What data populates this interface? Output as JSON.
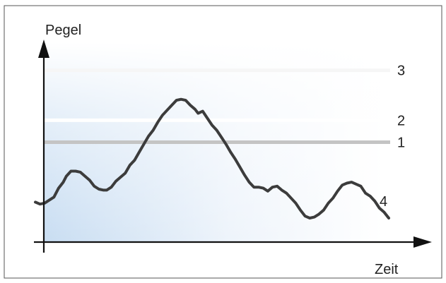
{
  "diagram": {
    "y_axis_label": "Pegel",
    "x_axis_label": "Zeit",
    "levels": [
      {
        "label": "3",
        "value": 86,
        "color": "#f6f6f6"
      },
      {
        "label": "2",
        "value": 61,
        "color": "#ffffff"
      },
      {
        "label": "1",
        "value": 50,
        "color": "#c4c4c4"
      }
    ],
    "curve": {
      "label": "4",
      "color": "#3c3c3c",
      "points": [
        [
          0,
          20
        ],
        [
          1.5,
          19
        ],
        [
          3,
          19.5
        ],
        [
          4.5,
          21
        ],
        [
          6,
          22.5
        ],
        [
          7.5,
          27
        ],
        [
          9,
          30
        ],
        [
          10,
          33
        ],
        [
          11.5,
          35.5
        ],
        [
          13,
          35.5
        ],
        [
          14.5,
          35
        ],
        [
          16,
          33
        ],
        [
          17.5,
          31
        ],
        [
          19,
          28
        ],
        [
          20.5,
          26.5
        ],
        [
          22,
          26
        ],
        [
          23,
          26
        ],
        [
          24.5,
          27.5
        ],
        [
          26,
          30.5
        ],
        [
          27.5,
          32.5
        ],
        [
          29,
          34.5
        ],
        [
          30.5,
          38.5
        ],
        [
          32,
          41
        ],
        [
          33.5,
          45
        ],
        [
          35,
          49
        ],
        [
          36.5,
          53
        ],
        [
          38,
          56
        ],
        [
          39.5,
          60
        ],
        [
          41,
          63.5
        ],
        [
          42.5,
          66
        ],
        [
          44,
          68.5
        ],
        [
          45.5,
          71
        ],
        [
          47,
          71.5
        ],
        [
          48.5,
          71
        ],
        [
          50,
          68.5
        ],
        [
          51.5,
          66.5
        ],
        [
          52.5,
          64.5
        ],
        [
          54,
          65.5
        ],
        [
          55.5,
          62
        ],
        [
          57,
          58.5
        ],
        [
          58.5,
          56
        ],
        [
          60,
          52.5
        ],
        [
          61.5,
          49
        ],
        [
          63,
          45
        ],
        [
          64.5,
          41.5
        ],
        [
          66,
          37.5
        ],
        [
          67.5,
          33.5
        ],
        [
          69,
          30
        ],
        [
          70.5,
          27.5
        ],
        [
          72,
          27.5
        ],
        [
          73.5,
          27
        ],
        [
          75,
          25.5
        ],
        [
          76.5,
          27.5
        ],
        [
          78,
          28
        ],
        [
          79.5,
          26
        ],
        [
          81,
          24.5
        ],
        [
          82.5,
          22
        ],
        [
          84,
          19.5
        ],
        [
          85.5,
          16
        ],
        [
          87,
          13
        ],
        [
          88.5,
          12
        ],
        [
          90,
          12.5
        ],
        [
          91.5,
          14
        ],
        [
          93,
          16
        ],
        [
          94.5,
          19.5
        ],
        [
          96,
          22
        ],
        [
          97.5,
          25.5
        ],
        [
          99,
          28.5
        ],
        [
          100.5,
          29.5
        ],
        [
          102,
          30
        ],
        [
          103.5,
          29
        ],
        [
          105,
          28
        ],
        [
          106.5,
          24.5
        ],
        [
          108,
          23
        ],
        [
          109.5,
          20.5
        ],
        [
          111,
          17
        ],
        [
          112.5,
          15
        ],
        [
          114,
          12
        ]
      ]
    }
  }
}
